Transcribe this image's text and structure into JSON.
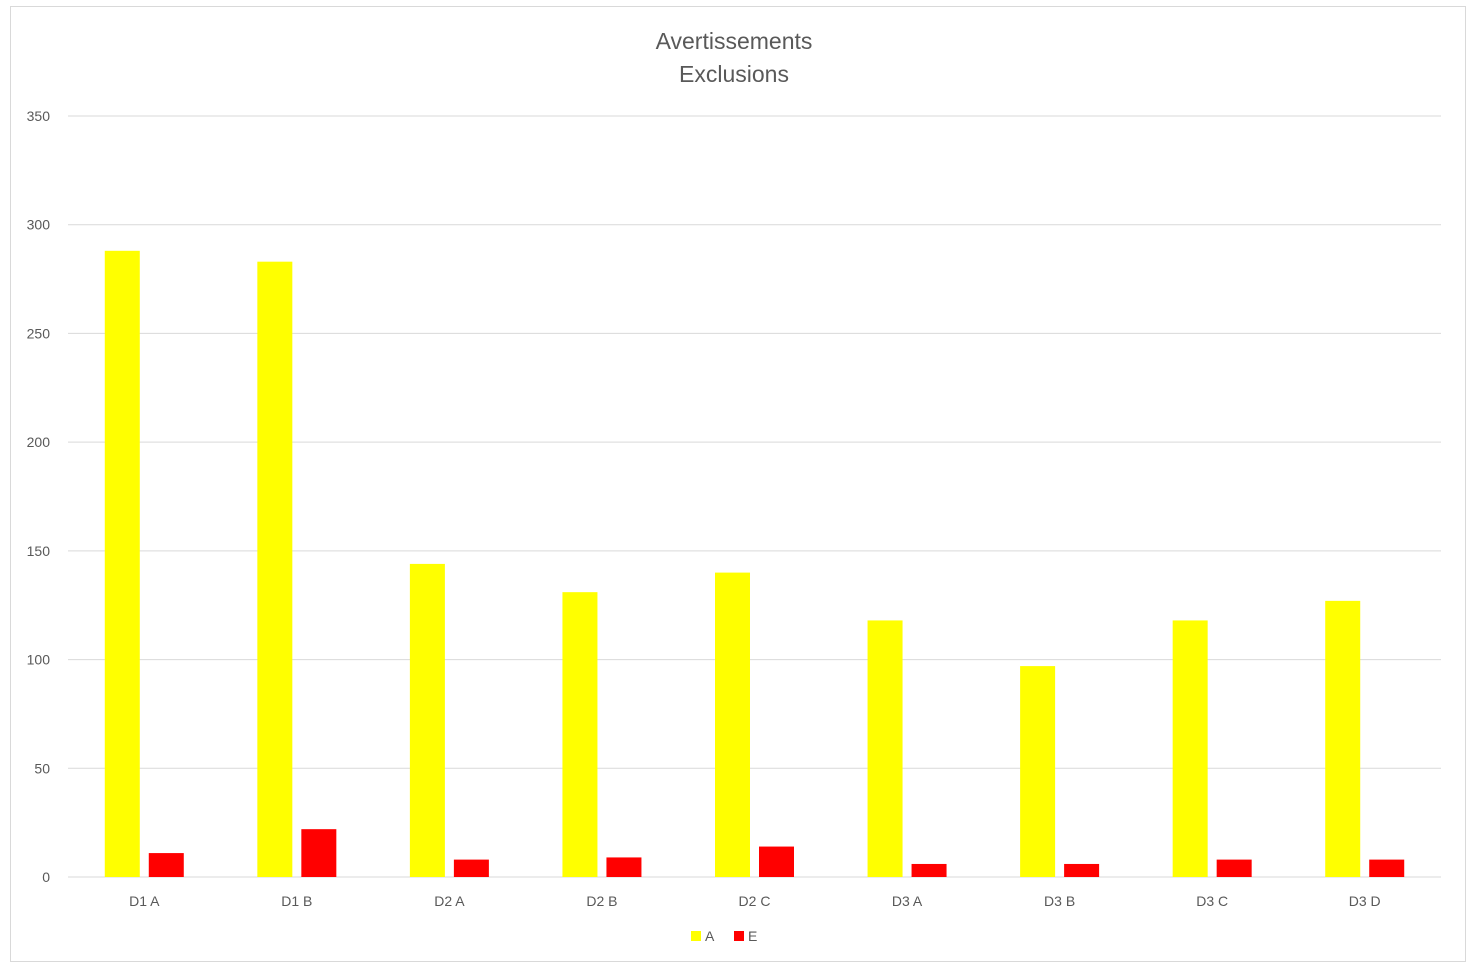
{
  "chart_data": {
    "type": "bar",
    "title": "Avertissements",
    "subtitle": "Exclusions",
    "xlabel": "",
    "ylabel": "",
    "categories": [
      "D1 A",
      "D1 B",
      "D2 A",
      "D2 B",
      "D2 C",
      "D3 A",
      "D3 B",
      "D3 C",
      "D3 D"
    ],
    "series": [
      {
        "name": "A",
        "color": "#FFFF00",
        "values": [
          288,
          283,
          144,
          131,
          140,
          118,
          97,
          118,
          127
        ]
      },
      {
        "name": "E",
        "color": "#FF0000",
        "values": [
          11,
          22,
          8,
          9,
          14,
          6,
          6,
          8,
          8
        ]
      }
    ],
    "ylim": [
      0,
      350
    ],
    "yticks": [
      0,
      50,
      100,
      150,
      200,
      250,
      300,
      350
    ],
    "grid": true,
    "legend": "bottom"
  }
}
